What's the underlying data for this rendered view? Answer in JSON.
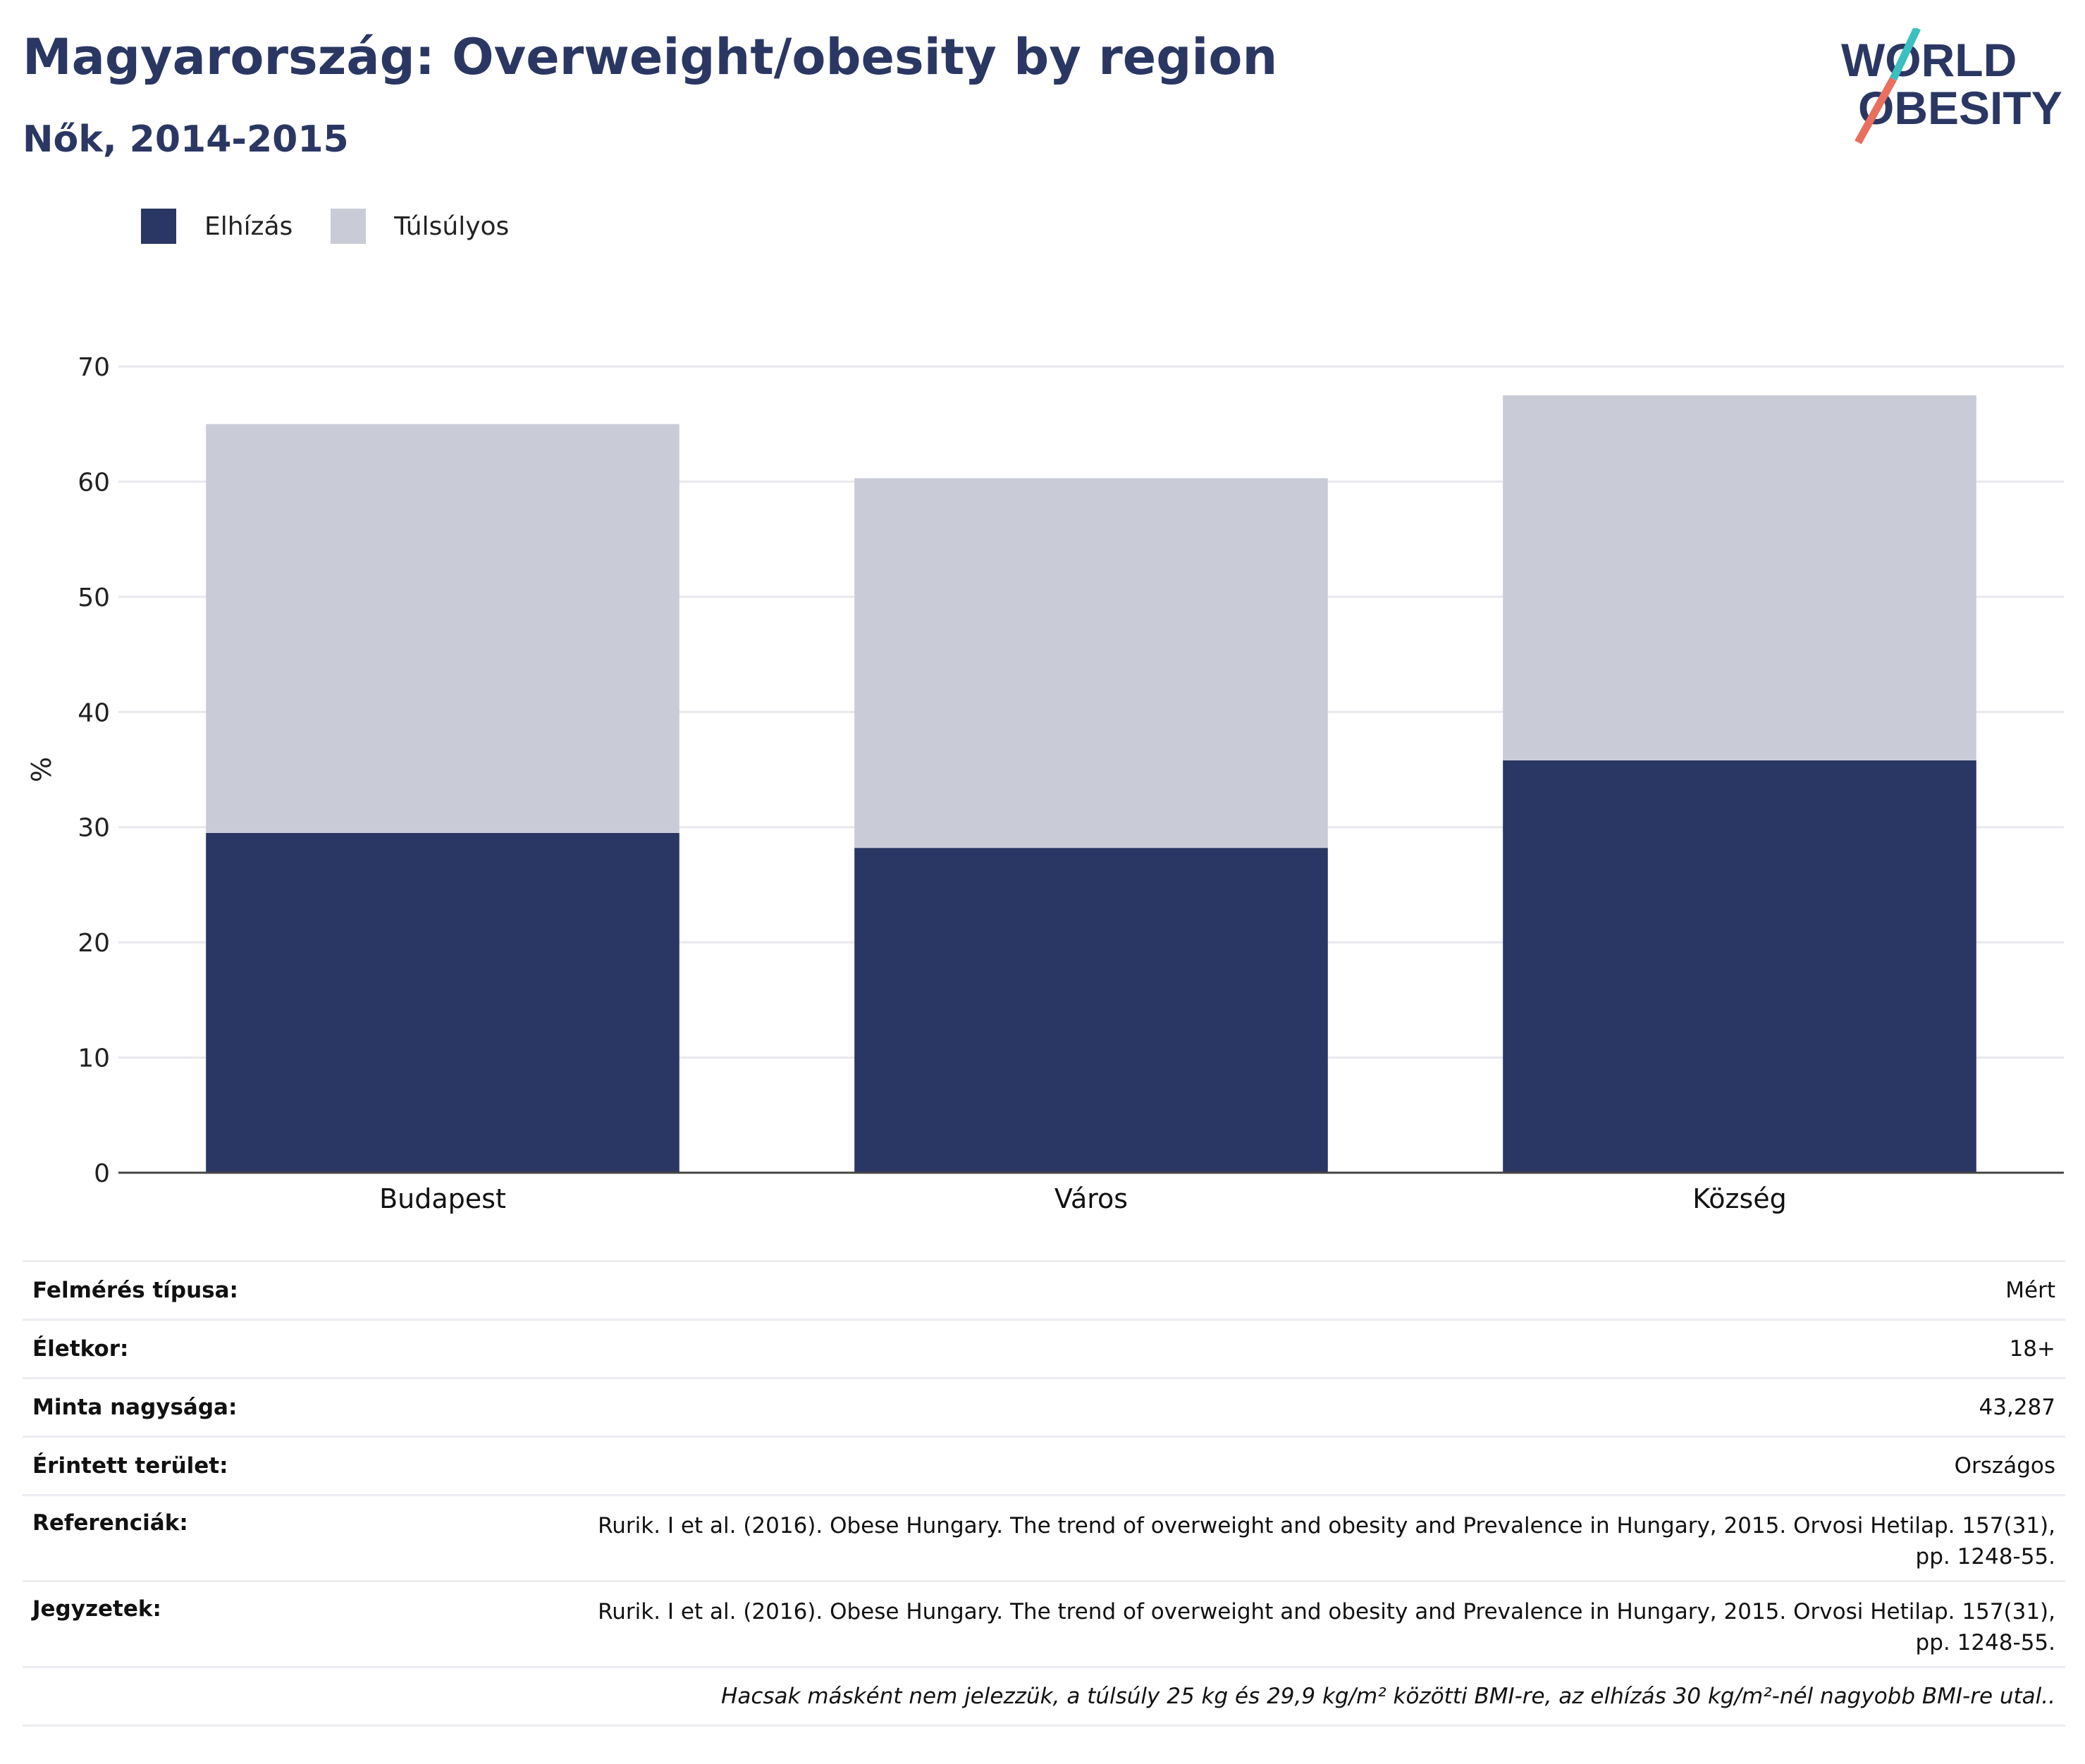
{
  "header": {
    "title": "Magyarország: Overweight/obesity by region",
    "subtitle": "Nők, 2014-2015"
  },
  "logo": {
    "line1": "WORLD",
    "line2": "OBESITY"
  },
  "legend": [
    {
      "label": "Elhízás",
      "color": "#2a3663"
    },
    {
      "label": "Túlsúlyos",
      "color": "#c9cbd7"
    }
  ],
  "chart_data": {
    "type": "bar",
    "stacked": true,
    "categories": [
      "Budapest",
      "Város",
      "Község"
    ],
    "series": [
      {
        "name": "Elhízás",
        "values": [
          29.5,
          28.2,
          35.8
        ],
        "color": "#2a3663"
      },
      {
        "name": "Túlsúlyos",
        "values": [
          35.5,
          32.1,
          31.7
        ],
        "color": "#c9cbd7"
      }
    ],
    "totals": [
      65.0,
      60.3,
      67.5
    ],
    "ylabel": "%",
    "ylim": [
      0,
      70
    ],
    "yticks": [
      0,
      10,
      20,
      30,
      40,
      50,
      60,
      70
    ],
    "grid": true,
    "legend_position": "top-left"
  },
  "meta": {
    "survey_type": {
      "label": "Felmérés típusa:",
      "value": "Mért"
    },
    "age": {
      "label": "Életkor:",
      "value": "18+"
    },
    "sample_size": {
      "label": "Minta nagysága:",
      "value": "43,287"
    },
    "area": {
      "label": "Érintett terület:",
      "value": "Országos"
    },
    "references": {
      "label": "Referenciák:",
      "value": "Rurik. I et al. (2016). Obese Hungary. The trend of overweight and obesity and Prevalence in Hungary, 2015. Orvosi Hetilap. 157(31), pp. 1248-55."
    },
    "notes": {
      "label": "Jegyzetek:",
      "value": "Rurik. I et al. (2016). Obese Hungary. The trend of overweight and obesity and Prevalence in Hungary, 2015. Orvosi Hetilap. 157(31), pp. 1248-55."
    },
    "footnote": "Hacsak másként nem jelezzük, a túlsúly 25 kg és 29,9 kg/m² közötti BMI-re, az elhízás 30 kg/m²-nél nagyobb BMI-re utal.."
  }
}
